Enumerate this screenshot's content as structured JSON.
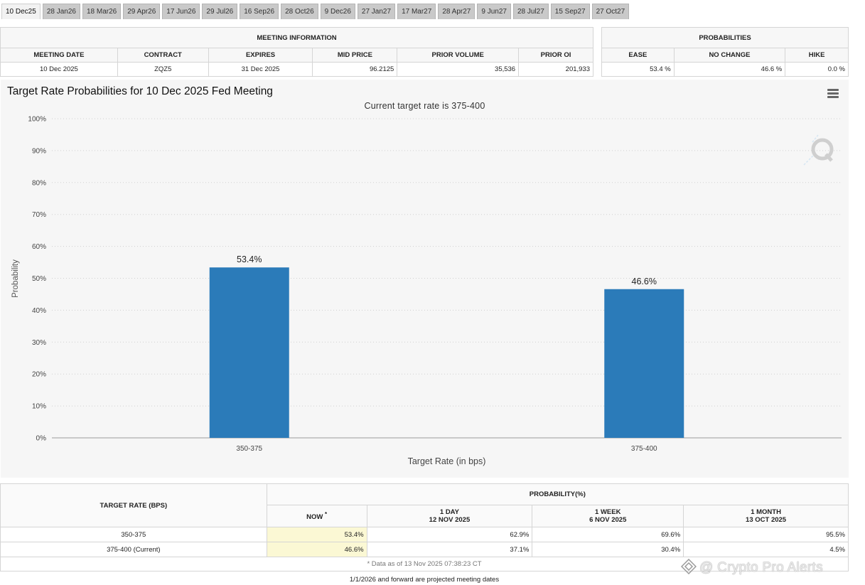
{
  "tabs": [
    "10 Dec25",
    "28 Jan26",
    "18 Mar26",
    "29 Apr26",
    "17 Jun26",
    "29 Jul26",
    "16 Sep26",
    "28 Oct26",
    "9 Dec26",
    "27 Jan27",
    "17 Mar27",
    "28 Apr27",
    "9 Jun27",
    "28 Jul27",
    "15 Sep27",
    "27 Oct27"
  ],
  "meeting_info": {
    "title": "MEETING INFORMATION",
    "headers": [
      "MEETING DATE",
      "CONTRACT",
      "EXPIRES",
      "MID PRICE",
      "PRIOR VOLUME",
      "PRIOR OI"
    ],
    "values": [
      "10 Dec 2025",
      "ZQZ5",
      "31 Dec 2025",
      "96.2125",
      "35,536",
      "201,933"
    ]
  },
  "probabilities": {
    "title": "PROBABILITIES",
    "headers": [
      "EASE",
      "NO CHANGE",
      "HIKE"
    ],
    "values": [
      "53.4 %",
      "46.6 %",
      "0.0 %"
    ]
  },
  "chart_data": {
    "type": "bar",
    "title": "Target Rate Probabilities for 10 Dec 2025 Fed Meeting",
    "subtitle": "Current target rate is 375-400",
    "xlabel": "Target Rate (in bps)",
    "ylabel": "Probability",
    "categories": [
      "350-375",
      "375-400"
    ],
    "values": [
      53.4,
      46.6
    ],
    "data_labels": [
      "53.4%",
      "46.6%"
    ],
    "ylim": [
      0,
      100
    ],
    "yticks": [
      "0%",
      "10%",
      "20%",
      "30%",
      "40%",
      "50%",
      "60%",
      "70%",
      "80%",
      "90%",
      "100%"
    ],
    "bar_color": "#2b7bb9",
    "grid": true
  },
  "prob_table": {
    "col_rate": "TARGET RATE (BPS)",
    "col_group": "PROBABILITY(%)",
    "col_now": "NOW",
    "now_mark": "*",
    "periods": [
      {
        "label": "1 DAY",
        "date": "12 NOV 2025"
      },
      {
        "label": "1 WEEK",
        "date": "6 NOV 2025"
      },
      {
        "label": "1 MONTH",
        "date": "13 OCT 2025"
      }
    ],
    "rows": [
      {
        "rate": "350-375",
        "now": "53.4%",
        "d1": "62.9%",
        "w1": "69.6%",
        "m1": "95.5%"
      },
      {
        "rate": "375-400 (Current)",
        "now": "46.6%",
        "d1": "37.1%",
        "w1": "30.4%",
        "m1": "4.5%"
      }
    ],
    "note": "* Data as of 13 Nov 2025 07:38:23 CT"
  },
  "footer": "1/1/2026 and forward are projected meeting dates",
  "credit": "@ Crypto Pro Alerts"
}
